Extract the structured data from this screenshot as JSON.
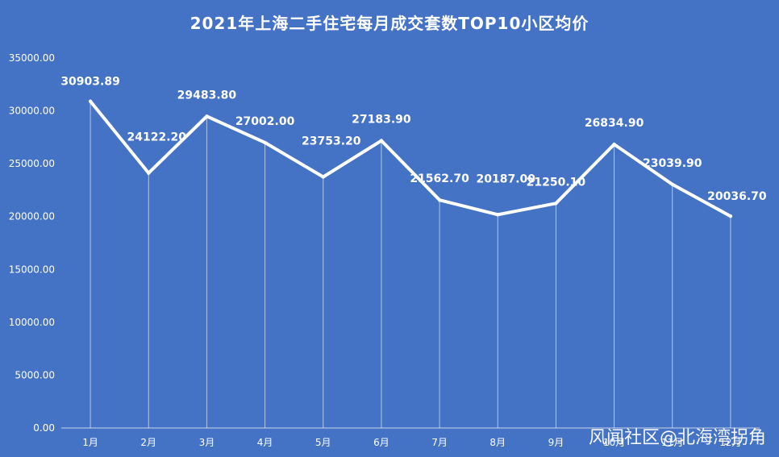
{
  "chart_data": {
    "type": "line",
    "title": "2021年上海二手住宅每月成交套数TOP10小区均价",
    "categories": [
      "1月",
      "2月",
      "3月",
      "4月",
      "5月",
      "6月",
      "7月",
      "8月",
      "9月",
      "10月",
      "11月",
      "12月"
    ],
    "values": [
      30903.89,
      24122.2,
      29483.8,
      27002.0,
      23753.2,
      27183.9,
      21562.7,
      20187.0,
      21250.1,
      26834.9,
      23039.9,
      20036.7
    ],
    "data_labels": [
      "30903.89",
      "24122.20",
      "29483.80",
      "27002.00",
      "23753.20",
      "27183.90",
      "21562.70",
      "20187.00",
      "21250.10",
      "26834.90",
      "23039.90",
      "20036.70"
    ],
    "y_ticks": [
      "0.00",
      "5000.00",
      "10000.00",
      "15000.00",
      "20000.00",
      "25000.00",
      "30000.00",
      "35000.00"
    ],
    "ylim": [
      0,
      35000
    ],
    "xlabel": "",
    "ylabel": "",
    "grid": false,
    "drop_lines": true,
    "colors": {
      "background": "#4472c4",
      "line": "#ffffff",
      "text": "#ffffff"
    }
  },
  "watermark": "风闻社区@北海湾拐角"
}
